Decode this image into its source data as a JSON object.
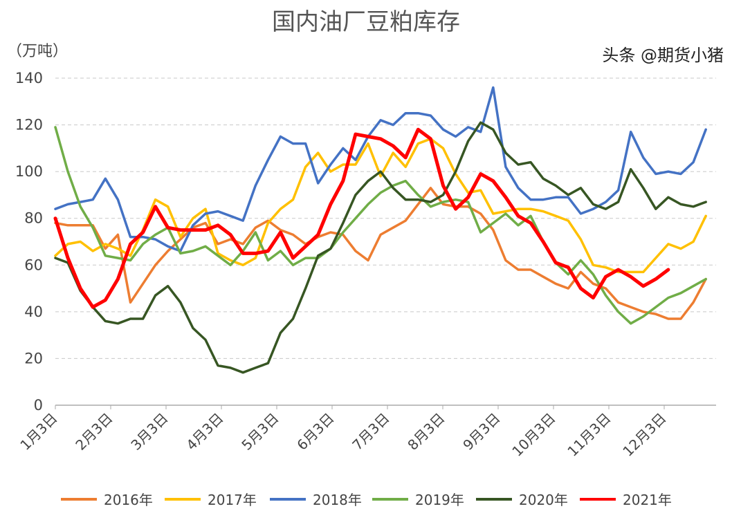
{
  "chart_data": {
    "type": "line",
    "title": "国内油厂豆粕库存",
    "ylabel": "（万吨）",
    "ylim": [
      0,
      140
    ],
    "yticks": [
      0,
      20,
      40,
      60,
      80,
      100,
      120,
      140
    ],
    "grid": true,
    "legend": "bottom",
    "x_frequency": "weekly",
    "xticks": [
      "1月3日",
      "2月3日",
      "3月3日",
      "4月3日",
      "5月3日",
      "6月3日",
      "7月3日",
      "8月3日",
      "9月3日",
      "10月3日",
      "11月3日",
      "12月3日"
    ],
    "series": [
      {
        "name": "2016年",
        "color": "#ED7D31",
        "values": [
          78,
          77,
          77,
          77,
          67,
          73,
          44,
          52,
          60,
          66,
          71,
          76,
          78,
          69,
          71,
          69,
          76,
          79,
          75,
          73,
          69,
          72,
          74,
          73,
          66,
          62,
          73,
          76,
          79,
          86,
          93,
          86,
          85,
          85,
          82,
          75,
          62,
          58,
          58,
          55,
          52,
          50,
          57,
          52,
          50,
          44,
          42,
          40,
          39,
          37,
          37,
          44,
          54
        ]
      },
      {
        "name": "2017年",
        "color": "#FFC000",
        "values": [
          64,
          69,
          70,
          66,
          69,
          67,
          64,
          75,
          88,
          85,
          72,
          80,
          84,
          65,
          62,
          60,
          63,
          78,
          84,
          88,
          102,
          108,
          100,
          103,
          103,
          112,
          98,
          108,
          102,
          112,
          114,
          110,
          99,
          91,
          92,
          82,
          83,
          84,
          84,
          83,
          81,
          79,
          71,
          60,
          59,
          57,
          57,
          57,
          63,
          69,
          67,
          70,
          81
        ]
      },
      {
        "name": "2018年",
        "color": "#4472C4",
        "values": [
          84,
          86,
          87,
          88,
          97,
          88,
          72,
          72,
          71,
          68,
          66,
          77,
          82,
          83,
          81,
          79,
          94,
          105,
          115,
          112,
          112,
          95,
          103,
          110,
          105,
          115,
          122,
          120,
          125,
          125,
          124,
          118,
          115,
          119,
          117,
          136,
          102,
          93,
          88,
          88,
          89,
          89,
          82,
          84,
          87,
          92,
          117,
          106,
          99,
          100,
          99,
          104,
          118
        ]
      },
      {
        "name": "2019年",
        "color": "#70AD47",
        "values": [
          119,
          100,
          85,
          76,
          64,
          63,
          62,
          69,
          73,
          76,
          65,
          66,
          68,
          64,
          60,
          66,
          74,
          62,
          66,
          60,
          63,
          63,
          67,
          74,
          80,
          86,
          91,
          94,
          96,
          90,
          85,
          87,
          88,
          87,
          74,
          78,
          82,
          77,
          81,
          70,
          61,
          56,
          62,
          56,
          47,
          40,
          35,
          38,
          42,
          46,
          48,
          51,
          54
        ]
      },
      {
        "name": "2020年",
        "color": "#375623",
        "values": [
          63,
          61,
          49,
          42,
          36,
          35,
          37,
          37,
          47,
          51,
          44,
          33,
          28,
          17,
          16,
          14,
          16,
          18,
          31,
          37,
          50,
          64,
          67,
          78,
          90,
          96,
          100,
          93,
          88,
          88,
          87,
          90,
          100,
          113,
          121,
          118,
          108,
          103,
          104,
          97,
          94,
          90,
          93,
          86,
          84,
          87,
          101,
          93,
          84,
          89,
          86,
          85,
          87
        ]
      },
      {
        "name": "2021年",
        "color": "#FF0000",
        "values": [
          80,
          63,
          50,
          42,
          45,
          54,
          69,
          74,
          85,
          76,
          75,
          75,
          75,
          77,
          73,
          65,
          65,
          66,
          74,
          63,
          68,
          73,
          86,
          96,
          116,
          115,
          114,
          111,
          106,
          118,
          114,
          94,
          84,
          89,
          99,
          96,
          89,
          81,
          78,
          70,
          61,
          59,
          50,
          46,
          55,
          58,
          55,
          51,
          54,
          58
        ]
      }
    ]
  },
  "watermark": "头条 @期货小猪"
}
